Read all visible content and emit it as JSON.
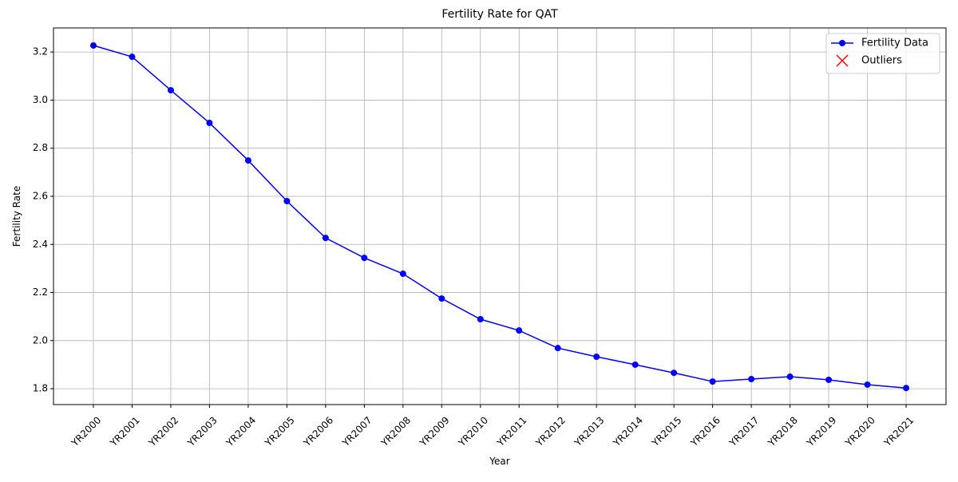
{
  "chart_data": {
    "type": "line",
    "title": "Fertility Rate for QAT",
    "x_label": "Year",
    "y_label": "Fertility Rate",
    "categories": [
      "YR2000",
      "YR2001",
      "YR2002",
      "YR2003",
      "YR2004",
      "YR2005",
      "YR2006",
      "YR2007",
      "YR2008",
      "YR2009",
      "YR2010",
      "YR2011",
      "YR2012",
      "YR2013",
      "YR2014",
      "YR2015",
      "YR2016",
      "YR2017",
      "YR2018",
      "YR2019",
      "YR2020",
      "YR2021"
    ],
    "series": [
      {
        "name": "Fertility Data",
        "color": "#0000ff",
        "marker": "o",
        "values": [
          3.227,
          3.18,
          3.041,
          2.905,
          2.749,
          2.58,
          2.427,
          2.344,
          2.278,
          2.175,
          2.089,
          2.042,
          1.969,
          1.933,
          1.9,
          1.866,
          1.83,
          1.84,
          1.85,
          1.837,
          1.817,
          1.803
        ]
      },
      {
        "name": "Outliers",
        "color": "#ff0000",
        "marker": "x",
        "values": [
          null,
          null,
          null,
          null,
          null,
          null,
          null,
          null,
          null,
          null,
          null,
          null,
          null,
          null,
          null,
          null,
          null,
          null,
          null,
          null,
          null,
          null
        ]
      }
    ],
    "ylim": [
      1.734,
      3.3
    ],
    "yticks": [
      {
        "value": 1.8,
        "label": "1.8"
      },
      {
        "value": 2.0,
        "label": "2.0"
      },
      {
        "value": 2.2,
        "label": "2.2"
      },
      {
        "value": 2.4,
        "label": "2.4"
      },
      {
        "value": 2.6,
        "label": "2.6"
      },
      {
        "value": 2.8,
        "label": "2.8"
      },
      {
        "value": 3.0,
        "label": "3.0"
      },
      {
        "value": 3.2,
        "label": "3.2"
      }
    ],
    "grid": true,
    "legend": "upper right"
  }
}
